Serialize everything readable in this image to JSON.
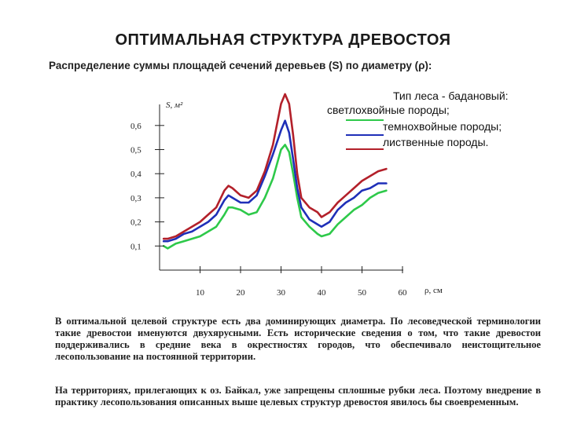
{
  "header": {
    "title": "ОПТИМАЛЬНАЯ СТРУКТУРА ДРЕВОСТОЯ",
    "subtitle": "Распределение суммы площадей сечений деревьев (S) по диаметру (ρ):"
  },
  "legend": {
    "title": "Тип леса - бадановый:",
    "items": [
      {
        "label": "светлохвойные породы;",
        "color": "#2ec94a"
      },
      {
        "label": "темнохвойные породы;",
        "color": "#1f2fb8"
      },
      {
        "label": "лиственные породы.",
        "color": "#b3202a"
      }
    ]
  },
  "chart_data": {
    "type": "line",
    "ylabel": "S, м²",
    "xlabel": "ρ, см",
    "xlim": [
      0,
      62
    ],
    "ylim": [
      0,
      0.7
    ],
    "x_ticks": [
      "10",
      "20",
      "30",
      "40",
      "50",
      "60"
    ],
    "y_ticks": [
      "0,1",
      "0,2",
      "0,3",
      "0,4",
      "0,5",
      "0,6"
    ],
    "legend_position": "top-right",
    "grid": false,
    "series": [
      {
        "name": "светлохвойные породы",
        "color": "#2ec94a",
        "points": [
          [
            1,
            0.1
          ],
          [
            2,
            0.09
          ],
          [
            4,
            0.11
          ],
          [
            6,
            0.12
          ],
          [
            8,
            0.13
          ],
          [
            10,
            0.14
          ],
          [
            12,
            0.16
          ],
          [
            14,
            0.18
          ],
          [
            16,
            0.23
          ],
          [
            17,
            0.26
          ],
          [
            18,
            0.26
          ],
          [
            20,
            0.25
          ],
          [
            22,
            0.23
          ],
          [
            24,
            0.24
          ],
          [
            26,
            0.3
          ],
          [
            28,
            0.38
          ],
          [
            30,
            0.5
          ],
          [
            31,
            0.52
          ],
          [
            32,
            0.49
          ],
          [
            33,
            0.4
          ],
          [
            34,
            0.3
          ],
          [
            35,
            0.22
          ],
          [
            37,
            0.18
          ],
          [
            39,
            0.15
          ],
          [
            40,
            0.14
          ],
          [
            42,
            0.15
          ],
          [
            44,
            0.19
          ],
          [
            46,
            0.22
          ],
          [
            48,
            0.25
          ],
          [
            50,
            0.27
          ],
          [
            52,
            0.3
          ],
          [
            54,
            0.32
          ],
          [
            56,
            0.33
          ]
        ]
      },
      {
        "name": "темнохвойные породы",
        "color": "#1f2fb8",
        "points": [
          [
            1,
            0.12
          ],
          [
            2,
            0.12
          ],
          [
            4,
            0.13
          ],
          [
            6,
            0.15
          ],
          [
            8,
            0.16
          ],
          [
            10,
            0.18
          ],
          [
            12,
            0.2
          ],
          [
            14,
            0.23
          ],
          [
            16,
            0.29
          ],
          [
            17,
            0.31
          ],
          [
            18,
            0.3
          ],
          [
            20,
            0.28
          ],
          [
            22,
            0.28
          ],
          [
            24,
            0.31
          ],
          [
            26,
            0.39
          ],
          [
            28,
            0.48
          ],
          [
            30,
            0.58
          ],
          [
            31,
            0.62
          ],
          [
            32,
            0.57
          ],
          [
            33,
            0.46
          ],
          [
            34,
            0.34
          ],
          [
            35,
            0.26
          ],
          [
            37,
            0.21
          ],
          [
            39,
            0.19
          ],
          [
            40,
            0.18
          ],
          [
            42,
            0.2
          ],
          [
            44,
            0.25
          ],
          [
            46,
            0.28
          ],
          [
            48,
            0.3
          ],
          [
            50,
            0.33
          ],
          [
            52,
            0.34
          ],
          [
            54,
            0.36
          ],
          [
            56,
            0.36
          ]
        ]
      },
      {
        "name": "лиственные породы",
        "color": "#b3202a",
        "points": [
          [
            1,
            0.13
          ],
          [
            2,
            0.13
          ],
          [
            4,
            0.14
          ],
          [
            6,
            0.16
          ],
          [
            8,
            0.18
          ],
          [
            10,
            0.2
          ],
          [
            12,
            0.23
          ],
          [
            14,
            0.26
          ],
          [
            16,
            0.33
          ],
          [
            17,
            0.35
          ],
          [
            18,
            0.34
          ],
          [
            20,
            0.31
          ],
          [
            22,
            0.3
          ],
          [
            24,
            0.33
          ],
          [
            26,
            0.41
          ],
          [
            28,
            0.52
          ],
          [
            30,
            0.69
          ],
          [
            31,
            0.73
          ],
          [
            32,
            0.69
          ],
          [
            33,
            0.56
          ],
          [
            34,
            0.4
          ],
          [
            35,
            0.3
          ],
          [
            37,
            0.26
          ],
          [
            39,
            0.24
          ],
          [
            40,
            0.22
          ],
          [
            42,
            0.24
          ],
          [
            44,
            0.28
          ],
          [
            46,
            0.31
          ],
          [
            48,
            0.34
          ],
          [
            50,
            0.37
          ],
          [
            52,
            0.39
          ],
          [
            54,
            0.41
          ],
          [
            56,
            0.42
          ]
        ]
      }
    ]
  },
  "text": {
    "p1": "В оптимальной целевой структуре есть два доминирующих диаметра. По лесоведческой терминологии такие древостои именуются двухярусными. Есть исторические сведения о том, что такие древостои поддерживались в средние века в окрестностях городов, что обеспечивало неистощительное лесопользование на постоянной территории.",
    "p2": "На территориях, прилегающих к оз. Байкал, уже запрещены сплошные рубки леса. Поэтому внедрение в практику лесопользования описанных выше целевых структур древостоя явилось бы своевременным."
  }
}
